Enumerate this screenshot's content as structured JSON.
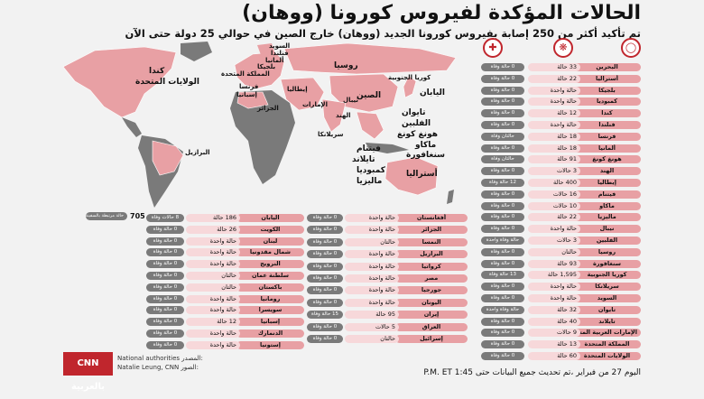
{
  "title": "الحالات المؤكدة لفيروس كورونا (ووهان)",
  "subtitle": "تم تأكيد أكثر من 250 إصابة بفيروس كورونا الجديد (ووهان) خارج الصين في حوالي 25 دولة حتى الآن",
  "map_labels": {
    "canada": "كندا",
    "usa": "الولايات المتحدة",
    "brazil": "البرازيل",
    "russia": "روسيا",
    "china": "الصين",
    "japan": "اليابان",
    "korea": "كوريا الجنوبية",
    "india": "الهند",
    "nepal": "نيبال",
    "sweden": "السويد",
    "finland": "فنلندا",
    "germany": "ألمانيا",
    "belgium": "بلجيكا",
    "uk": "المملكة المتحدة",
    "france": "فرنسا",
    "spain": "إسبانيا",
    "italy": "إيطاليا",
    "algeria": "الجزائر",
    "uae": "الإمارات",
    "srilanka": "سريلانكا",
    "taiwan": "تايوان",
    "philippines": "الفلبين",
    "hongkong": "هونغ كونغ",
    "macau": "ماكاو",
    "singapore": "سنغافورة",
    "vietnam": "فيتنام",
    "thailand": "تايلاند",
    "cambodia": "كمبوديا",
    "malaysia": "ماليزيا",
    "australia": "أستراليا"
  },
  "special_entry": {
    "count": "705",
    "label": "حالة مرتبطة بالسفينة البحرية"
  },
  "right_table": [
    {
      "country": "البحرين",
      "cases": "33 حالة",
      "deaths": "0 حالة وفاة"
    },
    {
      "country": "أستراليا",
      "cases": "22 حالة",
      "deaths": "0 حالة وفاة"
    },
    {
      "country": "بلجيكا",
      "cases": "حالة واحدة",
      "deaths": "0 حالة وفاة"
    },
    {
      "country": "كمبوديا",
      "cases": "حالة واحدة",
      "deaths": "0 حالة وفاة"
    },
    {
      "country": "كندا",
      "cases": "12 حالة",
      "deaths": "0 حالة وفاة"
    },
    {
      "country": "فنلندا",
      "cases": "حالة واحدة",
      "deaths": "0 حالة وفاة"
    },
    {
      "country": "فرنسا",
      "cases": "18 حالة",
      "deaths": "حالتان وفاة"
    },
    {
      "country": "ألمانيا",
      "cases": "18 حالة",
      "deaths": "0 حالة وفاة"
    },
    {
      "country": "هونغ كونغ",
      "cases": "91 حالة",
      "deaths": "حالتان وفاة"
    },
    {
      "country": "الهند",
      "cases": "3 حالات",
      "deaths": "0 حالة وفاة"
    },
    {
      "country": "إيطاليا",
      "cases": "400 حالة",
      "deaths": "12 حالة وفاة"
    },
    {
      "country": "فيتنام",
      "cases": "16 حالات",
      "deaths": "0 حالة وفاة"
    },
    {
      "country": "ماكاو",
      "cases": "10 حالات",
      "deaths": "0 حالة وفاة"
    },
    {
      "country": "ماليزيا",
      "cases": "22 حالة",
      "deaths": "0 حالة وفاة"
    },
    {
      "country": "نيبال",
      "cases": "حالة واحدة",
      "deaths": "0 حالة وفاة"
    },
    {
      "country": "الفلبين",
      "cases": "3 حالات",
      "deaths": "حالة وفاة واحدة"
    },
    {
      "country": "روسيا",
      "cases": "حالتان",
      "deaths": "0 حالة وفاة"
    },
    {
      "country": "سنغافورة",
      "cases": "93 حالة",
      "deaths": "0 حالة وفاة"
    },
    {
      "country": "كوريا الجنوبية",
      "cases": "1,595 حالة",
      "deaths": "13 حالة وفاة"
    },
    {
      "country": "سريلانكا",
      "cases": "حالة واحدة",
      "deaths": "0 حالة وفاة"
    },
    {
      "country": "السويد",
      "cases": "حالة واحدة",
      "deaths": "0 حالة وفاة"
    },
    {
      "country": "تايوان",
      "cases": "32 حالة",
      "deaths": "حالة وفاة واحدة"
    },
    {
      "country": "تايلاند",
      "cases": "40 حالة",
      "deaths": "0 حالة وفاة"
    },
    {
      "country": "الإمارات العربية المتحدة",
      "cases": "9 حالات",
      "deaths": "0 حالة وفاة"
    },
    {
      "country": "المملكة المتحدة",
      "cases": "13 حالة",
      "deaths": "0 حالة وفاة"
    },
    {
      "country": "الولايات المتحدة",
      "cases": "60 حالة",
      "deaths": "0 حالة وفاة"
    }
  ],
  "middle_table": [
    {
      "country": "أفغانستان",
      "cases": "حالة واحدة",
      "deaths": "0 حالة وفاة"
    },
    {
      "country": "الجزائر",
      "cases": "حالة واحدة",
      "deaths": "0 حالة وفاة"
    },
    {
      "country": "النمسا",
      "cases": "حالتان",
      "deaths": "0 حالة وفاة"
    },
    {
      "country": "البرازيل",
      "cases": "حالة واحدة",
      "deaths": "0 حالة وفاة"
    },
    {
      "country": "كرواتيا",
      "cases": "حالة واحدة",
      "deaths": "0 حالة وفاة"
    },
    {
      "country": "مصر",
      "cases": "حالة واحدة",
      "deaths": "0 حالة وفاة"
    },
    {
      "country": "جورجيا",
      "cases": "حالة واحدة",
      "deaths": "0 حالة وفاة"
    },
    {
      "country": "اليونان",
      "cases": "حالة واحدة",
      "deaths": "0 حالة وفاة"
    },
    {
      "country": "إيران",
      "cases": "95 حالة",
      "deaths": "15 حالة وفاة"
    },
    {
      "country": "العراق",
      "cases": "5 حالات",
      "deaths": "0 حالة وفاة"
    },
    {
      "country": "إسرائيل",
      "cases": "حالتان",
      "deaths": "0 حالة وفاة"
    }
  ],
  "left_table": [
    {
      "country": "اليابان",
      "cases": "186 حالة",
      "deaths": "8 حالات وفاة"
    },
    {
      "country": "الكويت",
      "cases": "26 حالة",
      "deaths": "0 حالة وفاة"
    },
    {
      "country": "لبنان",
      "cases": "حالة واحدة",
      "deaths": "0 حالة وفاة"
    },
    {
      "country": "شمال مقدونيا",
      "cases": "حالة واحدة",
      "deaths": "0 حالة وفاة"
    },
    {
      "country": "النرويج",
      "cases": "حالة واحدة",
      "deaths": "0 حالة وفاة"
    },
    {
      "country": "سلطنة عمان",
      "cases": "حالتان",
      "deaths": "0 حالة وفاة"
    },
    {
      "country": "باكستان",
      "cases": "حالتان",
      "deaths": "0 حالة وفاة"
    },
    {
      "country": "رومانيا",
      "cases": "حالة واحدة",
      "deaths": "0 حالة وفاة"
    },
    {
      "country": "سويسرا",
      "cases": "حالة واحدة",
      "deaths": "0 حالة وفاة"
    },
    {
      "country": "إسبانيا",
      "cases": "12 حالة",
      "deaths": "0 حالة وفاة"
    },
    {
      "country": "الدنمارك",
      "cases": "حالة واحدة",
      "deaths": "0 حالة وفاة"
    },
    {
      "country": "إستونيا",
      "cases": "حالة واحدة",
      "deaths": "0 حالة وفاة"
    }
  ],
  "source": {
    "label": "المصدر:",
    "value": "National authorities"
  },
  "photo": {
    "label": "الصور:",
    "value": "Natalie Leung, CNN"
  },
  "logo_text": "CNN بالعربية",
  "updated": "اليوم 27 من فبراير ،تم تحديث جميع البيانات حتى 1:45 P.M. ET",
  "colors": {
    "pink": "#e8a0a4",
    "light_pink": "#f7d8da",
    "death_grey": "#7a7a7a",
    "brand_red": "#c0262d",
    "land": "#7a7a7a"
  }
}
